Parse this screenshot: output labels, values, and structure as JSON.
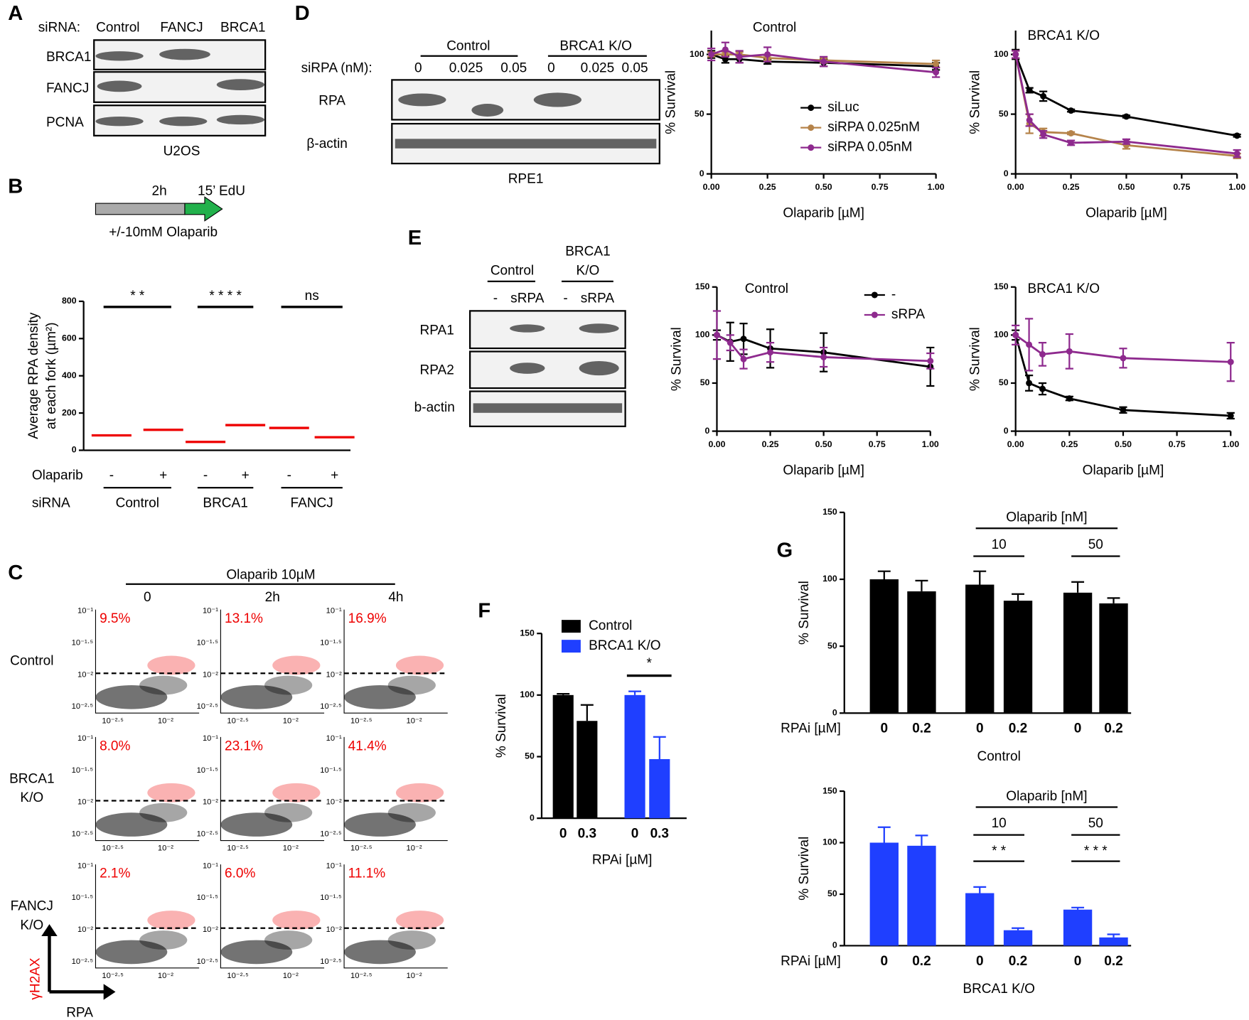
{
  "panels": {
    "labels": [
      "A",
      "B",
      "C",
      "D",
      "E",
      "F",
      "G"
    ],
    "A": {
      "row_header": "siRNA:",
      "columns": [
        "Control",
        "FANCJ",
        "BRCA1"
      ],
      "rows": [
        "BRCA1",
        "FANCJ",
        "PCNA"
      ],
      "cell_line": "U2OS"
    },
    "B": {
      "time": "2h",
      "edu": "15’ EdU",
      "treatment": "+/-10mM Olaparib"
    },
    "C": {
      "treatment": "Olaparib 10µM",
      "times": [
        "0",
        "2h",
        "4h"
      ],
      "rows": [
        [
          "Control"
        ],
        [
          "BRCA1",
          "K/O"
        ],
        [
          "FANCJ",
          "K/O"
        ]
      ],
      "percentages": [
        [
          "9.5%",
          "13.1%",
          "16.9%"
        ],
        [
          "8.0%",
          "23.1%",
          "41.4%"
        ],
        [
          "2.1%",
          "6.0%",
          "11.1%"
        ]
      ],
      "yticks": [
        "10⁻¹",
        "10⁻¹·⁵",
        "10⁻²",
        "10⁻²·⁵"
      ],
      "xticks": [
        "10⁻²·⁵",
        "10⁻²"
      ],
      "y_axis": "γH2AX",
      "x_axis": "RPA"
    },
    "D": {
      "headers": [
        "Control",
        "BRCA1 K/O"
      ],
      "row_label": "siRPA (nM):",
      "lanes": [
        "0",
        "0.025",
        "0.05",
        "0",
        "0.025",
        "0.05"
      ],
      "rows": [
        "RPA",
        "β-actin"
      ],
      "cell_line": "RPE1"
    },
    "E": {
      "control": "Control",
      "brca1": [
        "BRCA1",
        "K/O"
      ],
      "lanes": [
        "-",
        "sRPA",
        "-",
        "sRPA"
      ],
      "rows": [
        "RPA1",
        "RPA2",
        "b-actin"
      ]
    }
  },
  "chart_data": [
    {
      "type": "dot",
      "ylabel": [
        "Average RPA density",
        "at each fork (µm²)"
      ],
      "ylim": [
        0,
        800
      ],
      "yticks": [
        0,
        200,
        400,
        600,
        800
      ],
      "categories": [
        "-",
        "+",
        "-",
        "+",
        "-",
        "+"
      ],
      "row_label": "Olaparib",
      "group_label": "siRNA",
      "groups": [
        "Control",
        "BRCA1",
        "FANCJ"
      ],
      "significance": [
        "* *",
        "* * * *",
        "ns"
      ],
      "values": [
        80,
        110,
        45,
        135,
        120,
        70
      ],
      "color": "#e00"
    },
    {
      "type": "line",
      "title": "Control",
      "xlabel": "Olaparib [µM]",
      "ylabel": "% Survival",
      "xlim": [
        0,
        1
      ],
      "ylim": [
        0,
        120
      ],
      "yticks": [
        0,
        50,
        100
      ],
      "xticks": [
        {
          "value": 0,
          "label": "0.00"
        },
        {
          "value": 0.25,
          "label": "0.25"
        },
        {
          "value": 0.5,
          "label": "0.50"
        },
        {
          "value": 0.75,
          "label": "0.75"
        },
        {
          "value": 1,
          "label": "1.00"
        }
      ],
      "x": [
        0,
        0.0625,
        0.125,
        0.25,
        0.5,
        1
      ],
      "legend": true,
      "series": [
        {
          "name": "siLuc",
          "color": "#000000",
          "values": [
            100,
            96,
            96,
            94,
            93,
            90
          ],
          "errors": [
            3,
            3,
            3,
            2,
            3,
            3
          ]
        },
        {
          "name": "siRPA 0.025nM",
          "color": "#b5834a",
          "values": [
            100,
            100,
            100,
            97,
            95,
            92
          ],
          "errors": [
            2,
            2,
            2,
            2,
            2,
            3
          ]
        },
        {
          "name": "siRPA 0.05nM",
          "color": "#8e2a8e",
          "values": [
            100,
            104,
            98,
            100,
            94,
            85
          ],
          "errors": [
            5,
            6,
            5,
            6,
            4,
            4
          ]
        }
      ]
    },
    {
      "type": "line",
      "title": "BRCA1 K/O",
      "xlabel": "Olaparib [µM]",
      "ylabel": "% Survival",
      "xlim": [
        0,
        1
      ],
      "ylim": [
        0,
        120
      ],
      "yticks": [
        0,
        50,
        100
      ],
      "xticks": [
        {
          "value": 0,
          "label": "0.00"
        },
        {
          "value": 0.25,
          "label": "0.25"
        },
        {
          "value": 0.5,
          "label": "0.50"
        },
        {
          "value": 0.75,
          "label": "0.75"
        },
        {
          "value": 1,
          "label": "1.00"
        }
      ],
      "x": [
        0,
        0.0625,
        0.125,
        0.25,
        0.5,
        1
      ],
      "legend": false,
      "series": [
        {
          "color": "#000000",
          "values": [
            100,
            70,
            65,
            53,
            48,
            32
          ],
          "errors": [
            4,
            2,
            4,
            1,
            1,
            1
          ]
        },
        {
          "color": "#b5834a",
          "values": [
            100,
            42,
            35,
            34,
            24,
            15
          ],
          "errors": [
            3,
            8,
            3,
            1,
            3,
            2
          ]
        },
        {
          "color": "#8e2a8e",
          "values": [
            100,
            45,
            33,
            26,
            27,
            17
          ],
          "errors": [
            3,
            5,
            3,
            2,
            2,
            3
          ]
        }
      ]
    },
    {
      "type": "line",
      "title": "Control",
      "xlabel": "Olaparib [µM]",
      "ylabel": "% Survival",
      "xlim": [
        0,
        1
      ],
      "ylim": [
        0,
        150
      ],
      "yticks": [
        0,
        50,
        100,
        150
      ],
      "xticks": [
        {
          "value": 0,
          "label": "0.00"
        },
        {
          "value": 0.25,
          "label": "0.25"
        },
        {
          "value": 0.5,
          "label": "0.50"
        },
        {
          "value": 0.75,
          "label": "0.75"
        },
        {
          "value": 1,
          "label": "1.00"
        }
      ],
      "x": [
        0,
        0.0625,
        0.125,
        0.25,
        0.5,
        1
      ],
      "legend": true,
      "series": [
        {
          "name": "-",
          "color": "#000000",
          "values": [
            100,
            93,
            96,
            86,
            82,
            67
          ],
          "errors": [
            5,
            20,
            16,
            20,
            20,
            20
          ]
        },
        {
          "name": "sRPA",
          "color": "#8e2a8e",
          "values": [
            100,
            92,
            75,
            82,
            77,
            73
          ],
          "errors": [
            25,
            8,
            10,
            10,
            10,
            8
          ]
        }
      ]
    },
    {
      "type": "line",
      "title": "BRCA1 K/O",
      "xlabel": "Olaparib [µM]",
      "ylabel": "% Survival",
      "xlim": [
        0,
        1
      ],
      "ylim": [
        0,
        150
      ],
      "yticks": [
        0,
        50,
        100,
        150
      ],
      "xticks": [
        {
          "value": 0,
          "label": "0.00"
        },
        {
          "value": 0.25,
          "label": "0.25"
        },
        {
          "value": 0.5,
          "label": "0.50"
        },
        {
          "value": 0.75,
          "label": "0.75"
        },
        {
          "value": 1,
          "label": "1.00"
        }
      ],
      "x": [
        0,
        0.0625,
        0.125,
        0.25,
        0.5,
        1
      ],
      "legend": false,
      "series": [
        {
          "color": "#000000",
          "values": [
            100,
            50,
            44,
            34,
            22,
            16
          ],
          "errors": [
            5,
            8,
            6,
            2,
            3,
            3
          ]
        },
        {
          "color": "#8e2a8e",
          "values": [
            100,
            90,
            80,
            83,
            76,
            72
          ],
          "errors": [
            10,
            27,
            12,
            18,
            10,
            20
          ]
        }
      ]
    },
    {
      "type": "bar",
      "ylabel": "% Survival",
      "xlabel": "RPAi [µM]",
      "ylim": [
        0,
        150
      ],
      "yticks": [
        0,
        50,
        100,
        150
      ],
      "legend": true,
      "categories": [
        "0",
        "0.3",
        "0",
        "0.3"
      ],
      "significance": [
        "*"
      ],
      "series": [
        {
          "name": "Control",
          "color": "#000000",
          "values": [
            100,
            79,
            null,
            null
          ],
          "errors": [
            1,
            13,
            null,
            null
          ]
        },
        {
          "name": "BRCA1 K/O",
          "color": "#1f3fff",
          "values": [
            null,
            null,
            100,
            48
          ],
          "errors": [
            null,
            null,
            3,
            18
          ]
        }
      ]
    },
    {
      "type": "bar",
      "ylabel": "% Survival",
      "row_label": "RPAi [µM]",
      "group_label": "Control",
      "annotation": "Olaparib [nM]",
      "doses": [
        "10",
        "50"
      ],
      "ylim": [
        0,
        150
      ],
      "yticks": [
        0,
        50,
        100,
        150
      ],
      "legend": false,
      "categories": [
        "0",
        "0.2",
        "0",
        "0.2",
        "0",
        "0.2"
      ],
      "significance": [],
      "series": [
        {
          "color": "#000000",
          "values": [
            100,
            91,
            96,
            84,
            90,
            82
          ],
          "errors": [
            6,
            8,
            10,
            5,
            8,
            4
          ]
        }
      ]
    },
    {
      "type": "bar",
      "ylabel": "% Survival",
      "row_label": "RPAi [µM]",
      "group_label": "BRCA1 K/O",
      "annotation": "Olaparib [nM]",
      "doses": [
        "10",
        "50"
      ],
      "ylim": [
        0,
        150
      ],
      "yticks": [
        0,
        50,
        100,
        150
      ],
      "legend": false,
      "categories": [
        "0",
        "0.2",
        "0",
        "0.2",
        "0",
        "0.2"
      ],
      "significance": [
        "* *",
        "* * *"
      ],
      "series": [
        {
          "color": "#1f3fff",
          "values": [
            100,
            97,
            51,
            15,
            35,
            8
          ],
          "errors": [
            15,
            10,
            6,
            2,
            2,
            3
          ]
        }
      ]
    }
  ]
}
